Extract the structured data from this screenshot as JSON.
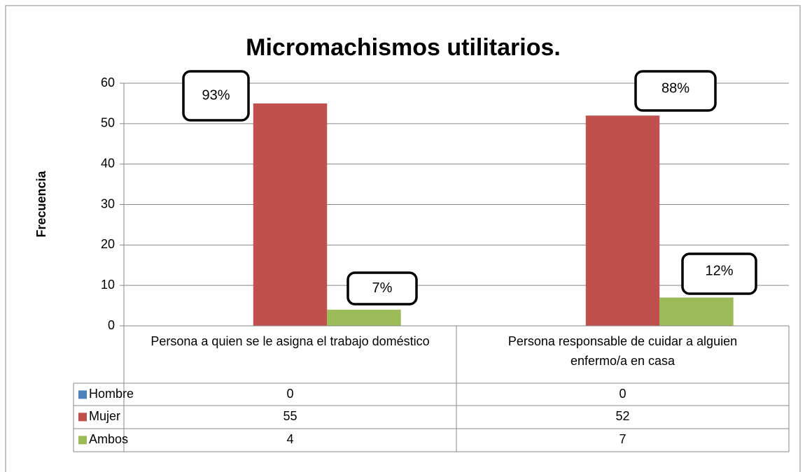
{
  "chart_data": {
    "type": "bar",
    "title": "Micromachismos utilitarios.",
    "ylabel": "Frecuencia",
    "categories": [
      "Persona a quien se le asigna el trabajo doméstico",
      "Persona responsable de cuidar a alguien enfermo/a en casa"
    ],
    "series": [
      {
        "name": "Hombre",
        "color": "#4f81bd",
        "values": [
          0,
          0
        ]
      },
      {
        "name": "Mujer",
        "color": "#c0504d",
        "values": [
          55,
          52
        ]
      },
      {
        "name": "Ambos",
        "color": "#9bbb59",
        "values": [
          4,
          7
        ]
      }
    ],
    "annotations": [
      "93%",
      "7%",
      "88%",
      "12%"
    ],
    "ylim": [
      0,
      60
    ],
    "yticks": [
      0,
      10,
      20,
      30,
      40,
      50,
      60
    ],
    "grid": true,
    "data_table": true
  }
}
